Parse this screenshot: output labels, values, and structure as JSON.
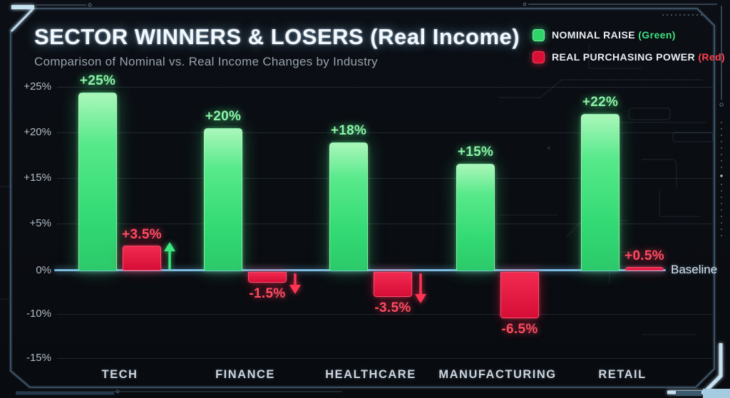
{
  "header": {
    "title": "SECTOR WINNERS & LOSERS (Real Income)",
    "subtitle": "Comparison of Nominal vs. Real Income Changes by Industry"
  },
  "legend": [
    {
      "label": "NOMINAL RAISE",
      "qualifier": "(Green)",
      "color": "#2fd56b"
    },
    {
      "label": "REAL PURCHASING POWER",
      "qualifier": "(Red)",
      "color": "#d90f36"
    }
  ],
  "chart_data": {
    "type": "bar",
    "categories": [
      "TECH",
      "FINANCE",
      "HEALTHCARE",
      "MANUFACTURING",
      "RETAIL"
    ],
    "series": [
      {
        "name": "Nominal Raise",
        "color": "#35e07a",
        "values": [
          25,
          20,
          18,
          15,
          22
        ],
        "labels": [
          "+25%",
          "+20%",
          "+18%",
          "+15%",
          "+22%"
        ]
      },
      {
        "name": "Real Purchasing Power",
        "color": "#e81440",
        "values": [
          3.5,
          -1.5,
          -3.5,
          -6.5,
          0.5
        ],
        "labels": [
          "+3.5%",
          "-1.5%",
          "-3.5%",
          "-6.5%",
          "+0.5%"
        ]
      }
    ],
    "y_ticks": [
      "+25%",
      "+20%",
      "+15%",
      "+5%",
      "0%",
      "-10%",
      "-15%"
    ],
    "y_tick_values": [
      25,
      20,
      15,
      5,
      0,
      -10,
      -15
    ],
    "ylim": [
      -15,
      25
    ],
    "grid": true,
    "baseline_label": "Baseline",
    "legend_position": "top-right",
    "arrows": [
      {
        "category": "TECH",
        "direction": "up"
      },
      {
        "category": "FINANCE",
        "direction": "down"
      },
      {
        "category": "HEALTHCARE",
        "direction": "down"
      }
    ]
  },
  "colors": {
    "baseline_blue": "#7cbce4",
    "arrow_up_green": "#3ce87f",
    "arrow_down_red": "#ff3454",
    "background": "#0a0d12"
  }
}
